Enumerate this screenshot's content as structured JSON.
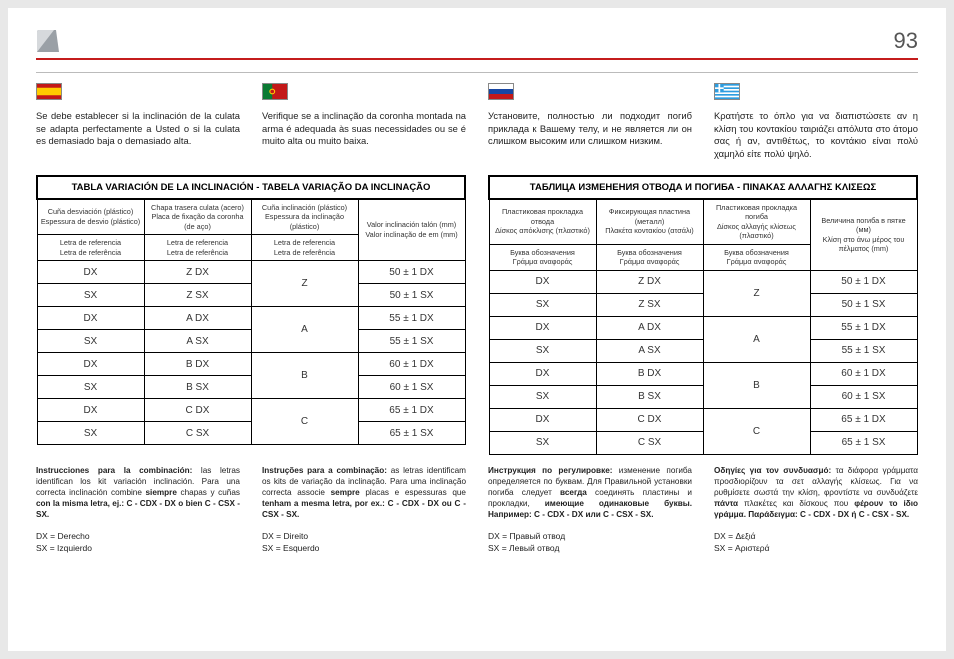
{
  "header": {
    "page_number": "93"
  },
  "intros": {
    "es": "Se debe establecer si la inclinación de la culata se adapta perfectamente a Usted o si la culata es demasiado baja o demasiado alta.",
    "pt": "Verifique se a inclinação da coronha montada na arma é adequada às suas necessidades ou se é muito alta ou muito baixa.",
    "ru": "Установите, полностью ли подходит погиб приклада к Вашему телу, и не является ли он слишком высоким или слишком низким.",
    "el": "Κρατήστε το όπλο για να διαπιστώσετε αν η κλίση του κοντακίου ταιριάζει απόλυτα στο άτομο σας ή αν, αντιθέτως, το κοντάκιο είναι πολύ χαμηλό είτε πολύ ψηλό."
  },
  "table_left": {
    "title": "TABLA VARIACIÓN DE LA INCLINACIÓN - TABELA VARIAÇÃO DA INCLINAÇÃO",
    "heads": {
      "c1a": "Cuña desviación (plástico)",
      "c1b": "Espessura de desvio (plástico)",
      "c2a": "Chapa trasera culata (acero)",
      "c2b": "Placa de fixação da coronha (de aço)",
      "c3a": "Cuña inclinación (plástico)",
      "c3b": "Espessura da inclinação (plástico)",
      "c4a": "Valor inclinación talón (mm)",
      "c4b": "Valor inclinação de em (mm)",
      "ref1": "Letra de referencia",
      "ref2": "Letra de referência"
    }
  },
  "table_right": {
    "title": "ТАБЛИЦА ИЗМЕНЕНИЯ ОТВОДА И ПОГИБА - ΠΙΝΑΚΑΣ ΑΛΛΑΓΗΣ ΚΛΙΣΕΩΣ",
    "heads": {
      "c1a": "Пластиковая прокладка отвода",
      "c1b": "Δίσκος απόκλισης (πλαστικό)",
      "c2a": "Фиксирующая пластина (металл)",
      "c2b": "Πλακέτα κοντακίου (ατσάλι)",
      "c3a": "Пластиковая прокладка погиба",
      "c3b": "Δίσκος αλλαγής κλίσεως (πλαστικό)",
      "c4a": "Величина погиба в пятке (мм)",
      "c4b": "Κλίση στο άνω μέρος του πέλματος (mm)",
      "ref1": "Буква обозначения",
      "ref2": "Γράμμα αναφοράς"
    }
  },
  "body_rows": [
    {
      "c1": "DX",
      "c2": "Z DX",
      "c3": "Z",
      "span": 2,
      "c4": "50 ± 1 DX"
    },
    {
      "c1": "SX",
      "c2": "Z SX",
      "c4": "50 ± 1 SX"
    },
    {
      "c1": "DX",
      "c2": "A DX",
      "c3": "A",
      "span": 2,
      "c4": "55 ± 1 DX"
    },
    {
      "c1": "SX",
      "c2": "A SX",
      "c4": "55 ± 1 SX"
    },
    {
      "c1": "DX",
      "c2": "B DX",
      "c3": "B",
      "span": 2,
      "c4": "60 ± 1 DX"
    },
    {
      "c1": "SX",
      "c2": "B SX",
      "c4": "60 ± 1 SX"
    },
    {
      "c1": "DX",
      "c2": "C DX",
      "c3": "C",
      "span": 2,
      "c4": "65 ± 1 DX"
    },
    {
      "c1": "SX",
      "c2": "C SX",
      "c4": "65 ± 1 SX"
    }
  ],
  "notes": {
    "es": {
      "lead": "Instrucciones para la combinación:",
      "body": " las letras identifican los kit variación inclinación. Para una correcta inclinación combine ",
      "bold2": "siempre",
      "body2": " chapas y cuñas ",
      "bold3": "con la misma letra, ej.: C - CDX - DX o bien C - CSX - SX."
    },
    "pt": {
      "lead": "Instruções para a combinação:",
      "body": " as letras identificam os kits de variação da inclinação. Para uma inclinação correcta associe ",
      "bold2": "sempre",
      "body2": " placas e espessuras que ",
      "bold3": "tenham a mesma letra, por ex.: C - CDX - DX ou C - CSX - SX."
    },
    "ru": {
      "lead": "Инструкция по регулировке:",
      "body": " изменение погиба определяется по буквам. Для Правильной установки погиба следует ",
      "bold2": "всегда",
      "body2": " соединять пластины и прокладки, ",
      "bold3": "имеющие одинаковые буквы. Например: C - CDX - DX или C - CSX - SX."
    },
    "el": {
      "lead": "Οδηγίες για τον συνδυασμό:",
      "body": " τα διάφορα γράμματα προσδιορίζουν τα σετ αλλαγής κλίσεως. Για να ρυθμίσετε σωστά την κλίση, φροντίστε να συνδυάζετε ",
      "bold2": "πάντα",
      "body2": " πλακέτες και δίσκους που ",
      "bold3": "φέρουν το ίδιο γράμμα. Παράδειγμα: C - CDX - DX ή C - CSX - SX."
    }
  },
  "legend": {
    "es": {
      "dx": "DX  =  Derecho",
      "sx": "SX  =  Izquierdo"
    },
    "pt": {
      "dx": "DX  =  Direito",
      "sx": "SX  =  Esquerdo"
    },
    "ru": {
      "dx": "DX  =  Правый отвод",
      "sx": "SX  =  Левый отвод"
    },
    "el": {
      "dx": "DX  =  Δεξιά",
      "sx": "SX  =  Αριστερά"
    }
  },
  "colors": {
    "red": "#c31818",
    "yellow": "#ffcc00",
    "green": "#0b7a33",
    "blue": "#1746a2",
    "white": "#ffffff",
    "cyan": "#2d9de0"
  }
}
